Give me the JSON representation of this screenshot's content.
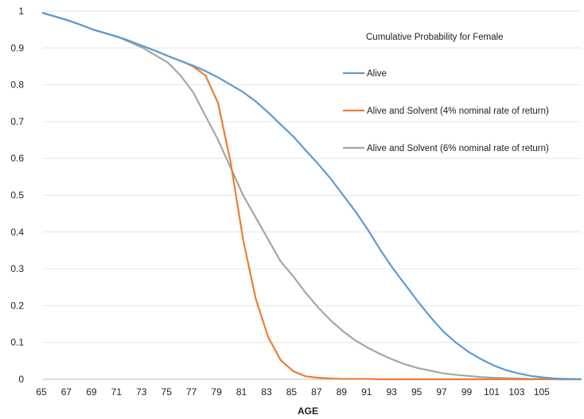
{
  "chart_data": {
    "type": "line",
    "title": "",
    "xlabel": "AGE",
    "ylabel": "",
    "xlim": [
      65,
      108
    ],
    "ylim": [
      0,
      1
    ],
    "y_ticks": [
      "0",
      "0.1",
      "0.2",
      "0.3",
      "0.4",
      "0.5",
      "0.6",
      "0.7",
      "0.8",
      "0.9",
      "1"
    ],
    "x_ticks": [
      "65",
      "67",
      "69",
      "71",
      "73",
      "75",
      "77",
      "79",
      "81",
      "83",
      "85",
      "87",
      "89",
      "91",
      "93",
      "95",
      "97",
      "99",
      "101",
      "103",
      "105"
    ],
    "grid": true,
    "legend": {
      "title": "Cumulative Probability for Female",
      "placement": "right"
    },
    "series": [
      {
        "name": "Alive",
        "color": "#5b9bd5",
        "x": [
          65,
          66,
          67,
          68,
          69,
          70,
          71,
          72,
          73,
          74,
          75,
          76,
          77,
          78,
          79,
          80,
          81,
          82,
          83,
          84,
          85,
          86,
          87,
          88,
          89,
          90,
          91,
          92,
          93,
          94,
          95,
          96,
          97,
          98,
          99,
          100,
          101,
          102,
          103,
          104,
          105,
          106,
          107,
          108
        ],
        "y": [
          0.995,
          0.985,
          0.975,
          0.963,
          0.95,
          0.94,
          0.93,
          0.918,
          0.905,
          0.892,
          0.878,
          0.865,
          0.852,
          0.837,
          0.82,
          0.8,
          0.78,
          0.755,
          0.725,
          0.692,
          0.66,
          0.622,
          0.585,
          0.545,
          0.5,
          0.455,
          0.405,
          0.35,
          0.3,
          0.255,
          0.21,
          0.168,
          0.13,
          0.1,
          0.075,
          0.055,
          0.038,
          0.025,
          0.016,
          0.009,
          0.005,
          0.002,
          0.001,
          0.0
        ]
      },
      {
        "name": "Alive and Solvent (4% nominal rate of return)",
        "color": "#ed7d31",
        "x": [
          65,
          66,
          67,
          68,
          69,
          70,
          71,
          72,
          73,
          74,
          75,
          76,
          77,
          78,
          79,
          80,
          81,
          82,
          83,
          84,
          85,
          86,
          87,
          88,
          89,
          90,
          91,
          92,
          93,
          94,
          95,
          96,
          97,
          98,
          99,
          100,
          101,
          102,
          103,
          104,
          105,
          106,
          107,
          108
        ],
        "y": [
          0.995,
          0.985,
          0.975,
          0.963,
          0.95,
          0.94,
          0.93,
          0.918,
          0.905,
          0.892,
          0.878,
          0.865,
          0.85,
          0.825,
          0.75,
          0.59,
          0.38,
          0.22,
          0.115,
          0.052,
          0.022,
          0.008,
          0.004,
          0.002,
          0.001,
          0.001,
          0.001,
          0.0,
          0.0,
          0.0,
          0.0,
          0.0,
          0.0,
          0.0,
          0.0,
          0.0,
          0.0,
          0.0,
          0.0,
          0.0,
          0.0,
          0.0,
          0.0,
          0.0
        ]
      },
      {
        "name": "Alive and Solvent (6% nominal rate of return)",
        "color": "#a5a5a5",
        "x": [
          65,
          66,
          67,
          68,
          69,
          70,
          71,
          72,
          73,
          74,
          75,
          76,
          77,
          78,
          79,
          80,
          81,
          82,
          83,
          84,
          85,
          86,
          87,
          88,
          89,
          90,
          91,
          92,
          93,
          94,
          95,
          96,
          97,
          98,
          99,
          100,
          101,
          102,
          103,
          104,
          105,
          106,
          107,
          108
        ],
        "y": [
          0.995,
          0.985,
          0.975,
          0.963,
          0.95,
          0.94,
          0.93,
          0.915,
          0.9,
          0.88,
          0.86,
          0.825,
          0.78,
          0.715,
          0.65,
          0.575,
          0.5,
          0.44,
          0.38,
          0.32,
          0.28,
          0.235,
          0.195,
          0.16,
          0.13,
          0.105,
          0.085,
          0.068,
          0.053,
          0.04,
          0.03,
          0.023,
          0.016,
          0.012,
          0.009,
          0.006,
          0.004,
          0.003,
          0.002,
          0.001,
          0.001,
          0.0,
          0.0,
          0.0
        ]
      }
    ]
  }
}
